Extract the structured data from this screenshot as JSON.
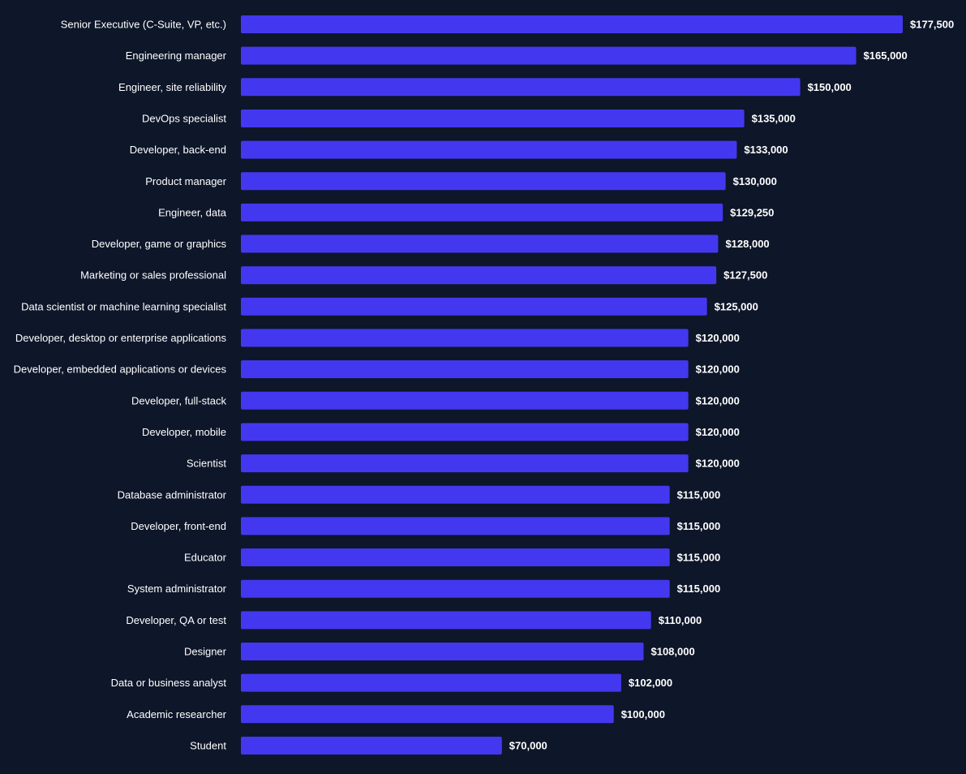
{
  "chart_data": {
    "type": "bar",
    "orientation": "horizontal",
    "title": "",
    "xlabel": "",
    "ylabel": "",
    "xlim": [
      0,
      177500
    ],
    "grid": false,
    "categories": [
      "Senior Executive (C-Suite, VP, etc.)",
      "Engineering manager",
      "Engineer, site reliability",
      "DevOps specialist",
      "Developer, back-end",
      "Product manager",
      "Engineer, data",
      "Developer, game or graphics",
      "Marketing or sales professional",
      "Data scientist or machine learning specialist",
      "Developer, desktop or enterprise applications",
      "Developer, embedded applications or devices",
      "Developer, full-stack",
      "Developer, mobile",
      "Scientist",
      "Database administrator",
      "Developer, front-end",
      "Educator",
      "System administrator",
      "Developer, QA or test",
      "Designer",
      "Data or business analyst",
      "Academic researcher",
      "Student"
    ],
    "values": [
      177500,
      165000,
      150000,
      135000,
      133000,
      130000,
      129250,
      128000,
      127500,
      125000,
      120000,
      120000,
      120000,
      120000,
      120000,
      115000,
      115000,
      115000,
      115000,
      110000,
      108000,
      102000,
      100000,
      70000
    ],
    "value_labels": [
      "$177,500",
      "$165,000",
      "$150,000",
      "$135,000",
      "$133,000",
      "$130,000",
      "$129,250",
      "$128,000",
      "$127,500",
      "$125,000",
      "$120,000",
      "$120,000",
      "$120,000",
      "$120,000",
      "$120,000",
      "$115,000",
      "$115,000",
      "$115,000",
      "$115,000",
      "$110,000",
      "$108,000",
      "$102,000",
      "$100,000",
      "$70,000"
    ],
    "colors": {
      "background": "#0e1629",
      "bar": "#4338ef",
      "text": "#ffffff"
    }
  }
}
